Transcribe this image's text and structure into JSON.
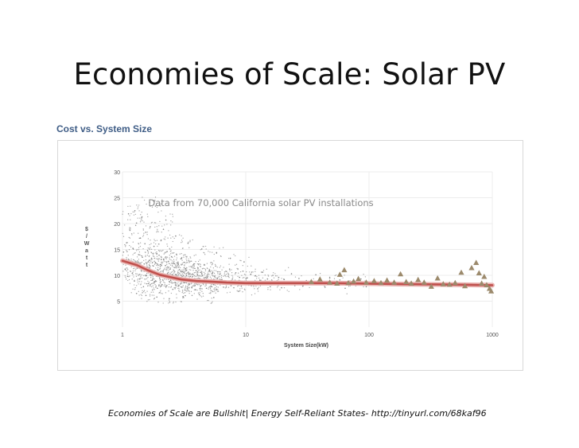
{
  "slide": {
    "title": "Economies of Scale: Solar PV",
    "caption": "Economies of Scale are Bullshit| Energy Self-Reliant States- http://tinyurl.com/68kaf96"
  },
  "chart_data": {
    "type": "scatter",
    "title": "Cost vs. System Size",
    "annotation": "Data from 70,000 California solar PV installations",
    "xlabel": "System Size(kW)",
    "ylabel": "$ / W a t t",
    "xscale": "log",
    "xlim": [
      1,
      1000
    ],
    "ylim": [
      0,
      30
    ],
    "xticks": [
      {
        "value": 1,
        "label": "1"
      },
      {
        "value": 10,
        "label": "10"
      },
      {
        "value": 100,
        "label": "100"
      },
      {
        "value": 1000,
        "label": "1000"
      }
    ],
    "yticks": [
      {
        "value": 5,
        "label": "5"
      },
      {
        "value": 10,
        "label": "10"
      },
      {
        "value": 15,
        "label": "15"
      },
      {
        "value": 20,
        "label": "20"
      },
      {
        "value": 25,
        "label": "25"
      },
      {
        "value": 30,
        "label": "30"
      }
    ],
    "series": [
      {
        "name": "Installations (point cloud)",
        "kind": "scatter-cloud",
        "color": "#888888",
        "points": [
          [
            1.02,
            14.5
          ],
          [
            1.05,
            11.2
          ],
          [
            1.08,
            16.3
          ],
          [
            1.1,
            9.8
          ],
          [
            1.12,
            13.1
          ],
          [
            1.15,
            18.7
          ],
          [
            1.18,
            12.0
          ],
          [
            1.2,
            10.4
          ],
          [
            1.22,
            15.2
          ],
          [
            1.25,
            8.9
          ],
          [
            1.28,
            12.6
          ],
          [
            1.3,
            20.1
          ],
          [
            1.32,
            11.4
          ],
          [
            1.35,
            14.0
          ],
          [
            1.38,
            9.3
          ],
          [
            1.4,
            17.2
          ],
          [
            1.42,
            10.9
          ],
          [
            1.45,
            13.5
          ],
          [
            1.48,
            7.8
          ],
          [
            1.5,
            12.2
          ],
          [
            1.52,
            16.1
          ],
          [
            1.55,
            9.9
          ],
          [
            1.58,
            11.6
          ],
          [
            1.6,
            14.8
          ],
          [
            1.62,
            8.4
          ],
          [
            1.65,
            12.9
          ],
          [
            1.68,
            19.4
          ],
          [
            1.7,
            10.2
          ],
          [
            1.72,
            13.3
          ],
          [
            1.75,
            9.1
          ],
          [
            1.78,
            11.8
          ],
          [
            1.8,
            15.6
          ],
          [
            1.82,
            8.7
          ],
          [
            1.85,
            12.4
          ],
          [
            1.88,
            10.6
          ],
          [
            1.9,
            14.2
          ],
          [
            1.92,
            7.5
          ],
          [
            1.95,
            11.0
          ],
          [
            1.98,
            13.9
          ],
          [
            2.0,
            9.4
          ],
          [
            2.03,
            12.1
          ],
          [
            2.06,
            16.8
          ],
          [
            2.1,
            8.2
          ],
          [
            2.13,
            10.8
          ],
          [
            2.16,
            13.0
          ],
          [
            2.2,
            9.6
          ],
          [
            2.23,
            11.9
          ],
          [
            2.26,
            7.9
          ],
          [
            2.3,
            14.6
          ],
          [
            2.33,
            10.3
          ],
          [
            2.36,
            12.7
          ],
          [
            2.4,
            8.8
          ],
          [
            2.43,
            11.2
          ],
          [
            2.46,
            9.0
          ],
          [
            2.5,
            13.6
          ],
          [
            2.53,
            10.1
          ],
          [
            2.56,
            7.3
          ],
          [
            2.6,
            12.3
          ],
          [
            2.63,
            9.7
          ],
          [
            2.66,
            11.5
          ],
          [
            2.7,
            8.5
          ],
          [
            2.74,
            14.1
          ],
          [
            2.78,
            10.0
          ],
          [
            2.82,
            12.0
          ],
          [
            2.86,
            8.1
          ],
          [
            2.9,
            11.1
          ],
          [
            2.94,
            9.5
          ],
          [
            2.98,
            13.2
          ],
          [
            3.02,
            7.7
          ],
          [
            3.06,
            10.7
          ],
          [
            3.1,
            9.2
          ],
          [
            3.15,
            12.5
          ],
          [
            3.2,
            8.6
          ],
          [
            3.25,
            11.3
          ],
          [
            3.3,
            9.9
          ],
          [
            3.35,
            7.4
          ],
          [
            3.4,
            10.5
          ],
          [
            3.45,
            12.8
          ],
          [
            3.5,
            8.3
          ],
          [
            3.55,
            9.8
          ],
          [
            3.6,
            11.7
          ],
          [
            3.65,
            7.6
          ],
          [
            3.7,
            10.2
          ],
          [
            3.75,
            8.9
          ],
          [
            3.8,
            12.2
          ],
          [
            3.85,
            9.3
          ],
          [
            3.9,
            7.2
          ],
          [
            3.95,
            10.9
          ],
          [
            4.0,
            8.7
          ],
          [
            4.1,
            11.4
          ],
          [
            4.2,
            9.1
          ],
          [
            4.3,
            7.9
          ],
          [
            4.4,
            10.4
          ],
          [
            4.5,
            8.4
          ],
          [
            4.6,
            12.0
          ],
          [
            4.7,
            9.6
          ],
          [
            4.8,
            7.5
          ],
          [
            4.9,
            10.1
          ],
          [
            5.0,
            8.8
          ],
          [
            5.1,
            11.0
          ],
          [
            5.2,
            9.0
          ],
          [
            5.3,
            7.8
          ],
          [
            5.4,
            10.6
          ],
          [
            5.5,
            8.2
          ],
          [
            5.6,
            9.7
          ],
          [
            5.7,
            11.8
          ],
          [
            5.8,
            7.3
          ],
          [
            5.9,
            9.4
          ],
          [
            6.0,
            8.6
          ],
          [
            6.2,
            10.3
          ],
          [
            6.4,
            9.2
          ],
          [
            6.6,
            7.7
          ],
          [
            6.8,
            10.0
          ],
          [
            7.0,
            8.5
          ],
          [
            7.2,
            9.8
          ],
          [
            7.4,
            11.2
          ],
          [
            7.6,
            8.0
          ],
          [
            7.8,
            9.3
          ],
          [
            8.0,
            7.6
          ],
          [
            8.3,
            10.5
          ],
          [
            8.6,
            8.9
          ],
          [
            8.9,
            9.6
          ],
          [
            9.2,
            7.9
          ],
          [
            9.5,
            10.8
          ],
          [
            9.8,
            8.3
          ],
          [
            10.2,
            9.5
          ],
          [
            10.6,
            8.1
          ],
          [
            11.0,
            10.2
          ],
          [
            11.5,
            8.7
          ],
          [
            12.0,
            9.9
          ],
          [
            12.5,
            7.4
          ],
          [
            13.0,
            9.0
          ],
          [
            13.6,
            10.6
          ],
          [
            14.2,
            8.4
          ],
          [
            15.0,
            9.3
          ],
          [
            15.8,
            7.8
          ],
          [
            16.6,
            10.0
          ],
          [
            17.5,
            8.8
          ],
          [
            18.5,
            9.6
          ],
          [
            19.5,
            7.6
          ],
          [
            20.5,
            9.2
          ],
          [
            22.0,
            8.5
          ],
          [
            23.5,
            10.3
          ],
          [
            25.0,
            8.0
          ],
          [
            27.0,
            9.4
          ],
          [
            29.0,
            7.9
          ],
          [
            31.0,
            9.0
          ],
          [
            34.0,
            8.3
          ],
          [
            37.0,
            10.1
          ],
          [
            40.0,
            8.6
          ],
          [
            44.0,
            7.7
          ],
          [
            48.0,
            9.5
          ],
          [
            53.0,
            8.2
          ],
          [
            58.0,
            9.1
          ],
          [
            64.0,
            7.5
          ],
          [
            70.0,
            8.9
          ],
          [
            78.0,
            8.0
          ],
          [
            86.0,
            9.3
          ],
          [
            95.0,
            7.8
          ],
          [
            105.0,
            8.7
          ],
          [
            1.26,
            22.5
          ],
          [
            1.44,
            21.3
          ],
          [
            1.66,
            24.1
          ],
          [
            1.3,
            6.5
          ],
          [
            1.55,
            6.1
          ],
          [
            1.9,
            5.8
          ],
          [
            2.4,
            5.5
          ],
          [
            3.1,
            5.9
          ],
          [
            4.2,
            6.3
          ],
          [
            5.5,
            5.7
          ],
          [
            2.15,
            18.9
          ],
          [
            2.7,
            17.6
          ],
          [
            3.4,
            16.2
          ],
          [
            4.4,
            15.1
          ],
          [
            5.8,
            14.4
          ],
          [
            7.5,
            13.3
          ],
          [
            9.7,
            12.6
          ],
          [
            1.85,
            23.4
          ],
          [
            2.25,
            20.7
          ],
          [
            1.12,
            21.9
          ]
        ]
      },
      {
        "name": "Trend",
        "kind": "line",
        "color": "#c0504d",
        "points": [
          [
            1,
            12.8
          ],
          [
            1.3,
            12.0
          ],
          [
            1.6,
            11.0
          ],
          [
            2,
            10.1
          ],
          [
            2.5,
            9.6
          ],
          [
            3,
            9.2
          ],
          [
            4,
            8.9
          ],
          [
            5,
            8.8
          ],
          [
            7,
            8.6
          ],
          [
            10,
            8.5
          ],
          [
            20,
            8.5
          ],
          [
            50,
            8.5
          ],
          [
            100,
            8.4
          ],
          [
            200,
            8.3
          ],
          [
            500,
            8.2
          ],
          [
            1000,
            8.1
          ]
        ]
      },
      {
        "name": "Large systems",
        "kind": "triangles",
        "color": "#9c8a6c",
        "points": [
          [
            34,
            8.7
          ],
          [
            40,
            9.2
          ],
          [
            48,
            8.6
          ],
          [
            55,
            8.4
          ],
          [
            58,
            10.1
          ],
          [
            63,
            11.0
          ],
          [
            68,
            8.5
          ],
          [
            75,
            8.8
          ],
          [
            82,
            9.3
          ],
          [
            95,
            8.6
          ],
          [
            110,
            8.9
          ],
          [
            125,
            8.5
          ],
          [
            140,
            9.0
          ],
          [
            160,
            8.6
          ],
          [
            180,
            10.2
          ],
          [
            200,
            8.7
          ],
          [
            220,
            8.4
          ],
          [
            250,
            9.1
          ],
          [
            280,
            8.6
          ],
          [
            320,
            7.8
          ],
          [
            360,
            9.4
          ],
          [
            400,
            8.3
          ],
          [
            450,
            8.2
          ],
          [
            500,
            8.5
          ],
          [
            560,
            10.5
          ],
          [
            600,
            7.9
          ],
          [
            680,
            11.4
          ],
          [
            740,
            12.4
          ],
          [
            780,
            10.4
          ],
          [
            820,
            8.4
          ],
          [
            860,
            9.7
          ],
          [
            900,
            8.1
          ],
          [
            950,
            7.4
          ],
          [
            980,
            6.9
          ]
        ]
      }
    ]
  }
}
